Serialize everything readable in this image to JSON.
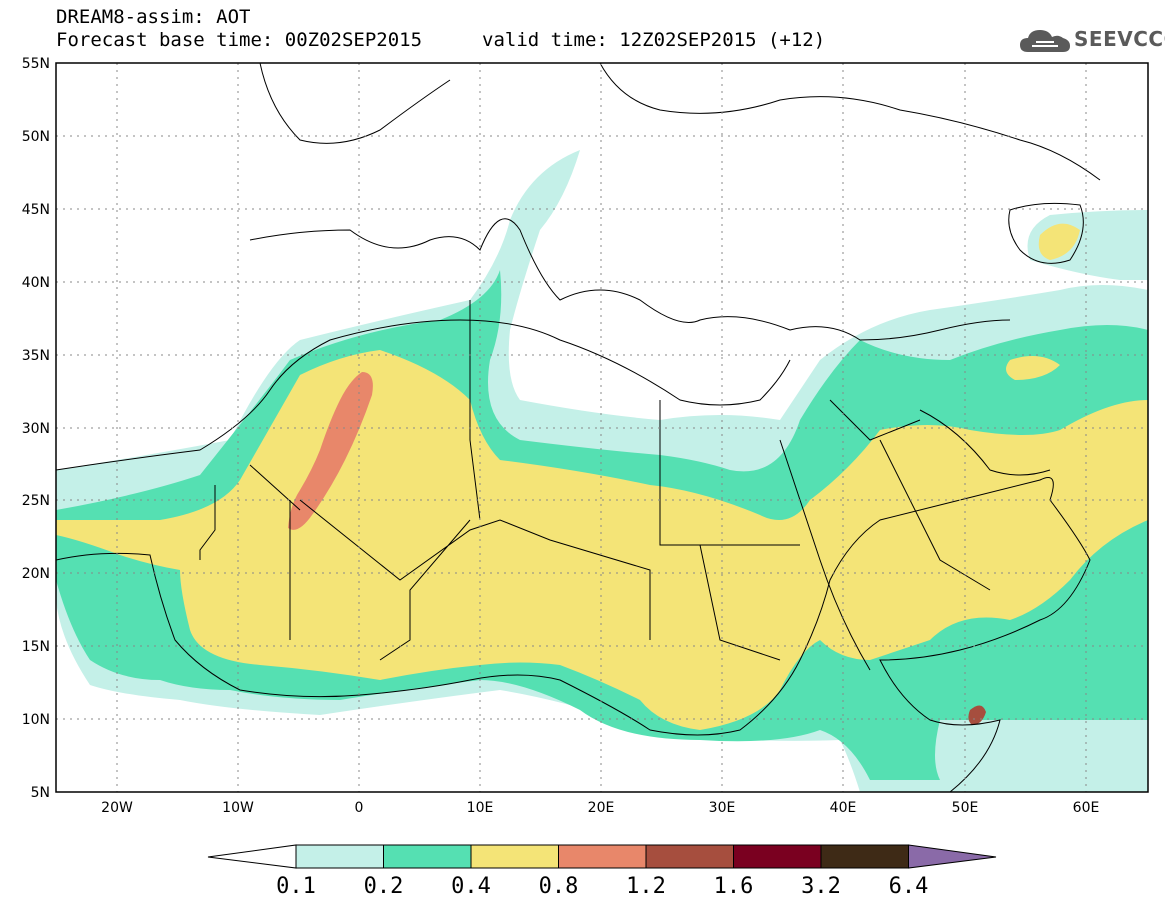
{
  "header": {
    "title_line1": "DREAM8-assim: AOT",
    "title_line2": "Forecast base time: 00Z02SEP2015",
    "valid_time": "valid time: 12Z02SEP2015 (+12)"
  },
  "logo": {
    "text": "SEEVCCC",
    "icon": "cloud-icon"
  },
  "map": {
    "lat_labels": [
      "55N",
      "50N",
      "45N",
      "40N",
      "35N",
      "30N",
      "25N",
      "20N",
      "15N",
      "10N",
      "5N"
    ],
    "lon_labels": [
      "20W",
      "10W",
      "0",
      "10E",
      "20E",
      "30E",
      "40E",
      "50E",
      "60E"
    ],
    "colors": {
      "c01": "#c4f0e8",
      "c02": "#55e0b2",
      "c04": "#f4e477",
      "c08": "#e8876a",
      "c12": "#a64e3e",
      "c16": "#7a0020",
      "c32": "#3e2a16",
      "c64": "#8a6aa8",
      "land_border": "#000000"
    }
  },
  "colorbar": {
    "labels": [
      "0.1",
      "0.2",
      "0.4",
      "0.8",
      "1.2",
      "1.6",
      "3.2",
      "6.4"
    ]
  }
}
